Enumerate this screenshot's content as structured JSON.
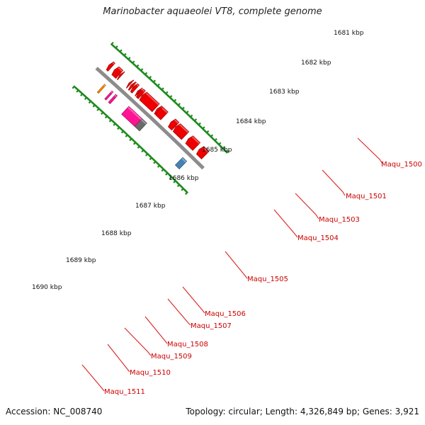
{
  "title": "Marinobacter aquaeolei VT8, complete genome",
  "footer": {
    "accession": "Accession: NC_008740",
    "summary": "Topology: circular; Length: 4,326,849 bp; Genes: 3,921"
  },
  "colors": {
    "backbone": "#8c8c8c",
    "tick_dots": "#1d8a1d",
    "label_text": "#cc0000",
    "leader_line": "#dd2222",
    "gene_red": "#ee0000",
    "gene_blue": "#4682b4",
    "gene_gray": "#6b6b6b",
    "gene_magenta": "#ff1493",
    "gene_orange": "#ff8c00"
  },
  "kbp_labels": [
    "1681 kbp",
    "1682 kbp",
    "1683 kbp",
    "1684 kbp",
    "1685 kbp",
    "1686 kbp",
    "1687 kbp",
    "1688 kbp",
    "1689 kbp",
    "1690 kbp"
  ],
  "gene_labels": [
    "Maqu_1500",
    "Maqu_1501",
    "Maqu_1503",
    "Maqu_1504",
    "Maqu_1505",
    "Maqu_1506",
    "Maqu_1507",
    "Maqu_1508",
    "Maqu_1509",
    "Maqu_1510",
    "Maqu_1511"
  ],
  "genes": [
    {
      "track": "outer",
      "start_kbp": 1680.2,
      "end_kbp": 1680.95,
      "color": "gene_red"
    },
    {
      "track": "outer",
      "start_kbp": 1681.3,
      "end_kbp": 1682.3,
      "color": "gene_red"
    },
    {
      "track": "outer",
      "start_kbp": 1682.7,
      "end_kbp": 1683.85,
      "color": "gene_red"
    },
    {
      "track": "outer",
      "start_kbp": 1683.9,
      "end_kbp": 1684.45,
      "color": "gene_red"
    },
    {
      "track": "outer",
      "start_kbp": 1685.25,
      "end_kbp": 1686.0,
      "color": "gene_red"
    },
    {
      "track": "outer",
      "start_kbp": 1685.95,
      "end_kbp": 1686.15,
      "color": "gene_red"
    },
    {
      "track": "outer",
      "start_kbp": 1686.3,
      "end_kbp": 1687.95,
      "color": "gene_red"
    },
    {
      "track": "outer",
      "start_kbp": 1688.0,
      "end_kbp": 1688.35,
      "color": "gene_red"
    },
    {
      "track": "outer",
      "start_kbp": 1688.35,
      "end_kbp": 1688.5,
      "color": "gene_red"
    },
    {
      "track": "outer",
      "start_kbp": 1688.75,
      "end_kbp": 1689.05,
      "color": "gene_red"
    },
    {
      "track": "outer",
      "start_kbp": 1689.1,
      "end_kbp": 1689.3,
      "color": "gene_red"
    },
    {
      "track": "outer",
      "start_kbp": 1689.4,
      "end_kbp": 1689.55,
      "color": "gene_red"
    },
    {
      "track": "outer",
      "start_kbp": 1690.5,
      "end_kbp": 1690.65,
      "color": "gene_red"
    },
    {
      "track": "outer",
      "start_kbp": 1690.7,
      "end_kbp": 1691.3,
      "color": "gene_red"
    },
    {
      "track": "outer",
      "start_kbp": 1691.65,
      "end_kbp": 1691.95,
      "color": "gene_red"
    },
    {
      "track": "inner",
      "start_kbp": 1681.0,
      "end_kbp": 1681.5,
      "color": "gene_blue"
    },
    {
      "track": "inner",
      "start_kbp": 1685.95,
      "end_kbp": 1686.6,
      "color": "gene_gray"
    },
    {
      "track": "inner",
      "start_kbp": 1686.55,
      "end_kbp": 1688.15,
      "color": "gene_magenta"
    },
    {
      "track": "inner",
      "start_kbp": 1689.55,
      "end_kbp": 1689.75,
      "color": "gene_magenta"
    },
    {
      "track": "inner",
      "start_kbp": 1690.05,
      "end_kbp": 1690.2,
      "color": "gene_magenta"
    },
    {
      "track": "inner",
      "start_kbp": 1690.95,
      "end_kbp": 1691.1,
      "color": "gene_orange"
    }
  ]
}
